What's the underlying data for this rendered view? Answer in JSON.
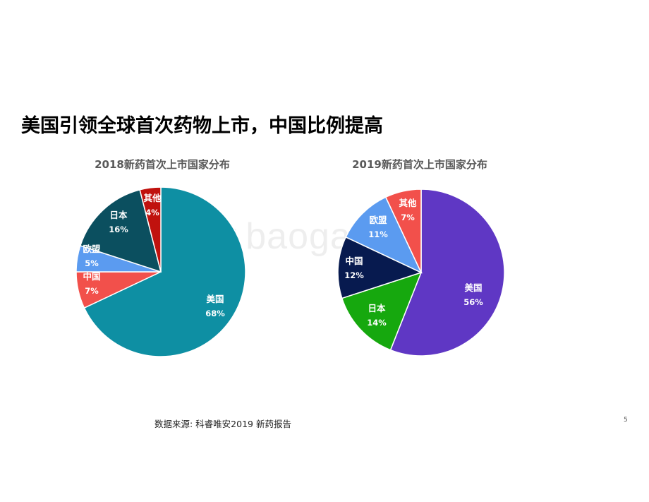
{
  "page": {
    "title": "美国引领全球首次药物上市，中国比例提高",
    "source": "数据来源: 科睿唯安2019 新药报告",
    "page_number": "5",
    "watermark": "www.baogao.com"
  },
  "chart_data": [
    {
      "type": "pie",
      "title": "2018新药首次上市国家分布",
      "slices": [
        {
          "label": "美国",
          "value": 68,
          "display": "68%",
          "color": "#0E8FA3"
        },
        {
          "label": "中国",
          "value": 7,
          "display": "7%",
          "color": "#F2504B"
        },
        {
          "label": "欧盟",
          "value": 5,
          "display": "5%",
          "color": "#5B9BF0"
        },
        {
          "label": "日本",
          "value": 16,
          "display": "16%",
          "color": "#0B4F5F"
        },
        {
          "label": "其他",
          "value": 4,
          "display": "4%",
          "color": "#C0120E"
        }
      ]
    },
    {
      "type": "pie",
      "title": "2019新药首次上市国家分布",
      "slices": [
        {
          "label": "美国",
          "value": 56,
          "display": "56%",
          "color": "#5F37C4"
        },
        {
          "label": "日本",
          "value": 14,
          "display": "14%",
          "color": "#16A80E"
        },
        {
          "label": "中国",
          "value": 12,
          "display": "12%",
          "color": "#071A4F"
        },
        {
          "label": "欧盟",
          "value": 11,
          "display": "11%",
          "color": "#5B9BF0"
        },
        {
          "label": "其他",
          "value": 7,
          "display": "7%",
          "color": "#F2504B"
        }
      ]
    }
  ]
}
